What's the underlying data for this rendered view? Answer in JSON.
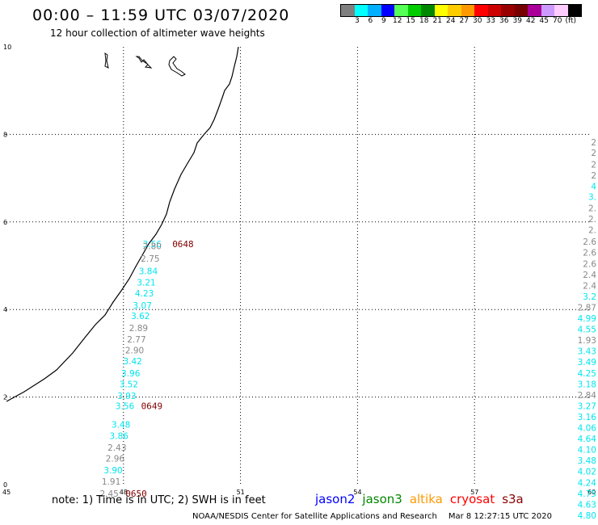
{
  "header": {
    "title": "00:00 – 11:59 UTC 03/07/2020",
    "subtitle": "12 hour collection of altimeter wave heights"
  },
  "colorbar": {
    "swatches": [
      "#808080",
      "#00ffff",
      "#00b0ff",
      "#0000ff",
      "#55ff55",
      "#00cc00",
      "#008800",
      "#ffff00",
      "#ffcc00",
      "#ff9900",
      "#ff0000",
      "#cc0000",
      "#990000",
      "#770000",
      "#aa0099",
      "#cc99ff",
      "#ffccff",
      "#000000"
    ],
    "labels": [
      "3",
      "6",
      "9",
      "12",
      "15",
      "18",
      "21",
      "24",
      "27",
      "30",
      "33",
      "36",
      "39",
      "42",
      "45",
      "70"
    ],
    "unit": "(ft)"
  },
  "map": {
    "lon_ticks": [
      "45",
      "48",
      "51",
      "54",
      "57",
      "60"
    ],
    "lat_ticks": [
      "0",
      "2",
      "4",
      "6",
      "8",
      "10"
    ],
    "lon_range": [
      45,
      60
    ],
    "lat_range": [
      0,
      10
    ],
    "grid_lons": [
      48,
      51,
      54,
      57
    ],
    "grid_lats": [
      2,
      4,
      6,
      8
    ],
    "coast_color": "#000000",
    "track_west": [
      {
        "v": "3.56",
        "lon": 48.7,
        "lat": 5.5,
        "c": "#00e5ee"
      },
      {
        "v": "2.80",
        "lon": 48.7,
        "lat": 5.45,
        "c": "#888888"
      },
      {
        "v": "2.75",
        "lon": 48.65,
        "lat": 5.17,
        "c": "#888888"
      },
      {
        "v": "3.84",
        "lon": 48.6,
        "lat": 4.88,
        "c": "#00e5ee"
      },
      {
        "v": "3.21",
        "lon": 48.55,
        "lat": 4.62,
        "c": "#00e5ee"
      },
      {
        "v": "4.23",
        "lon": 48.5,
        "lat": 4.37,
        "c": "#00e5ee"
      },
      {
        "v": "3.07",
        "lon": 48.45,
        "lat": 4.1,
        "c": "#00e5ee"
      },
      {
        "v": "3.62",
        "lon": 48.4,
        "lat": 3.86,
        "c": "#00e5ee"
      },
      {
        "v": "2.89",
        "lon": 48.35,
        "lat": 3.58,
        "c": "#888888"
      },
      {
        "v": "2.77",
        "lon": 48.3,
        "lat": 3.32,
        "c": "#888888"
      },
      {
        "v": "2.90",
        "lon": 48.25,
        "lat": 3.07,
        "c": "#888888"
      },
      {
        "v": "3.42",
        "lon": 48.2,
        "lat": 2.82,
        "c": "#00e5ee"
      },
      {
        "v": "3.96",
        "lon": 48.15,
        "lat": 2.55,
        "c": "#00e5ee"
      },
      {
        "v": "3.52",
        "lon": 48.1,
        "lat": 2.3,
        "c": "#00e5ee"
      },
      {
        "v": "3.93",
        "lon": 48.05,
        "lat": 2.03,
        "c": "#00e5ee"
      },
      {
        "v": "3.56",
        "lon": 48.0,
        "lat": 1.8,
        "c": "#00e5ee"
      },
      {
        "v": "3.48",
        "lon": 47.9,
        "lat": 1.37,
        "c": "#00e5ee"
      },
      {
        "v": "3.86",
        "lon": 47.85,
        "lat": 1.12,
        "c": "#00e5ee"
      },
      {
        "v": "2.43",
        "lon": 47.8,
        "lat": 0.85,
        "c": "#888888"
      },
      {
        "v": "2.96",
        "lon": 47.75,
        "lat": 0.6,
        "c": "#888888"
      },
      {
        "v": "3.90",
        "lon": 47.7,
        "lat": 0.33,
        "c": "#00e5ee"
      },
      {
        "v": "1.91",
        "lon": 47.65,
        "lat": 0.07,
        "c": "#888888"
      },
      {
        "v": "2.45",
        "lon": 47.6,
        "lat": -0.2,
        "c": "#888888"
      }
    ],
    "time_labels": [
      {
        "v": "0648",
        "lon": 49.5,
        "lat": 5.5
      },
      {
        "v": "0649",
        "lon": 48.7,
        "lat": 1.8
      },
      {
        "v": "0650",
        "lon": 48.3,
        "lat": -0.2
      }
    ],
    "track_east": [
      {
        "v": "2",
        "c": "#888888",
        "lat": 7.82
      },
      {
        "v": "2",
        "c": "#888888",
        "lat": 7.58
      },
      {
        "v": "2",
        "c": "#888888",
        "lat": 7.32
      },
      {
        "v": "2",
        "c": "#888888",
        "lat": 7.07
      },
      {
        "v": "4",
        "c": "#00e5ee",
        "lat": 6.82
      },
      {
        "v": "3.",
        "c": "#00e5ee",
        "lat": 6.58
      },
      {
        "v": "2.",
        "c": "#888888",
        "lat": 6.32
      },
      {
        "v": "2.",
        "c": "#888888",
        "lat": 6.07
      },
      {
        "v": "2.",
        "c": "#888888",
        "lat": 5.82
      },
      {
        "v": "2.6",
        "c": "#888888",
        "lat": 5.55
      },
      {
        "v": "2.6",
        "c": "#888888",
        "lat": 5.3
      },
      {
        "v": "2.6",
        "c": "#888888",
        "lat": 5.05
      },
      {
        "v": "2.4",
        "c": "#888888",
        "lat": 4.8
      },
      {
        "v": "2.4",
        "c": "#888888",
        "lat": 4.55
      },
      {
        "v": "3.2",
        "c": "#00e5ee",
        "lat": 4.3
      },
      {
        "v": "2.87",
        "c": "#888888",
        "lat": 4.05
      },
      {
        "v": "4.99",
        "c": "#00e5ee",
        "lat": 3.8
      },
      {
        "v": "4.55",
        "c": "#00e5ee",
        "lat": 3.55
      },
      {
        "v": "1.93",
        "c": "#888888",
        "lat": 3.3
      },
      {
        "v": "3.43",
        "c": "#00e5ee",
        "lat": 3.05
      },
      {
        "v": "3.49",
        "c": "#00e5ee",
        "lat": 2.8
      },
      {
        "v": "4.25",
        "c": "#00e5ee",
        "lat": 2.55
      },
      {
        "v": "3.18",
        "c": "#00e5ee",
        "lat": 2.3
      },
      {
        "v": "2.84",
        "c": "#888888",
        "lat": 2.05
      },
      {
        "v": "3.27",
        "c": "#00e5ee",
        "lat": 1.8
      },
      {
        "v": "3.16",
        "c": "#00e5ee",
        "lat": 1.55
      },
      {
        "v": "4.06",
        "c": "#00e5ee",
        "lat": 1.3
      },
      {
        "v": "4.64",
        "c": "#00e5ee",
        "lat": 1.05
      },
      {
        "v": "4.10",
        "c": "#00e5ee",
        "lat": 0.8
      },
      {
        "v": "3.48",
        "c": "#00e5ee",
        "lat": 0.55
      },
      {
        "v": "4.02",
        "c": "#00e5ee",
        "lat": 0.3
      },
      {
        "v": "4.24",
        "c": "#00e5ee",
        "lat": 0.05
      },
      {
        "v": "4.75",
        "c": "#00e5ee",
        "lat": -0.2
      },
      {
        "v": "4.63",
        "c": "#00e5ee",
        "lat": -0.45
      },
      {
        "v": "4.80",
        "c": "#00e5ee",
        "lat": -0.7
      }
    ]
  },
  "footer": {
    "note": "note: 1) Time is in UTC; 2) SWH is in feet",
    "satellites": [
      {
        "name": "jason2",
        "color": "#0000ff"
      },
      {
        "name": "jason3",
        "color": "#008800"
      },
      {
        "name": "altika",
        "color": "#ff9900"
      },
      {
        "name": "cryosat",
        "color": "#ff0000"
      },
      {
        "name": "s3a",
        "color": "#880000"
      }
    ],
    "credit": "NOAA/NESDIS Center for Satellite Applications and Research",
    "date": "Mar  8 12:27:15 UTC 2020"
  }
}
